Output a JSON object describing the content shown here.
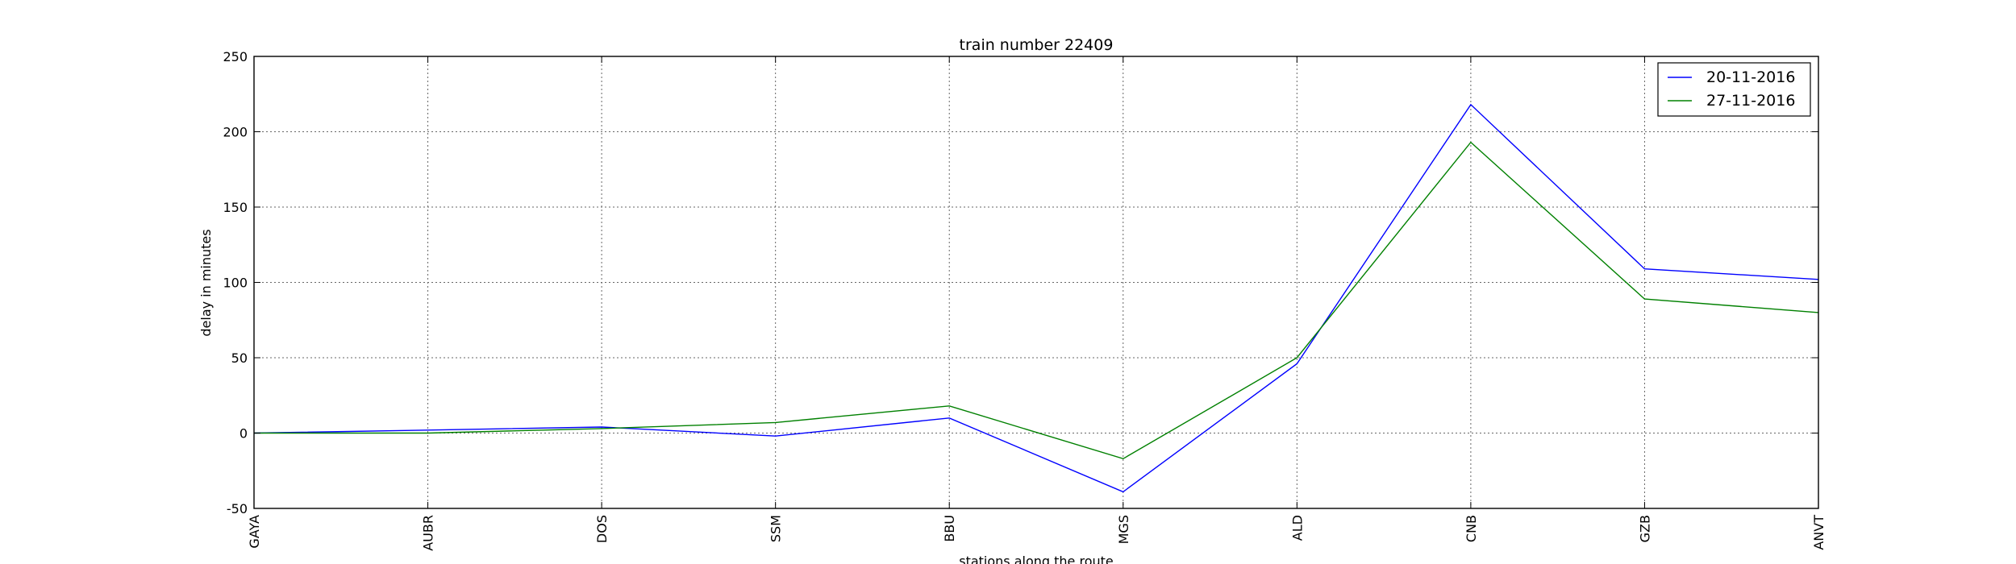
{
  "chart_data": {
    "type": "line",
    "title": "train number 22409",
    "xlabel": "stations along the route",
    "ylabel": "delay in minutes",
    "categories": [
      "GAYA",
      "AUBR",
      "DOS",
      "SSM",
      "BBU",
      "MGS",
      "ALD",
      "CNB",
      "GZB",
      "ANVT"
    ],
    "ylim": [
      -50,
      250
    ],
    "yticks": [
      -50,
      0,
      50,
      100,
      150,
      200,
      250
    ],
    "grid": true,
    "legend_position": "top-right",
    "series": [
      {
        "name": "20-11-2016",
        "color": "#0000ff",
        "values": [
          0,
          2,
          4,
          -2,
          10,
          -39,
          46,
          218,
          109,
          102
        ]
      },
      {
        "name": "27-11-2016",
        "color": "#008000",
        "values": [
          0,
          0,
          3,
          7,
          18,
          -17,
          50,
          193,
          89,
          80
        ]
      }
    ]
  }
}
